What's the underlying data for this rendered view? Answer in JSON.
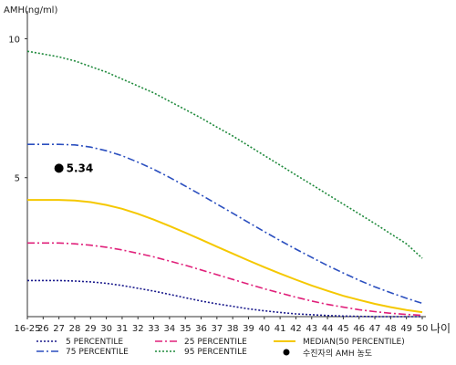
{
  "chart_data": {
    "type": "line",
    "ylabel": "AMH(ng/ml)",
    "xlabel": "나이",
    "ylim": [
      0,
      11
    ],
    "y_ticks": [
      5,
      10
    ],
    "categories": [
      "16-25",
      "26",
      "27",
      "28",
      "29",
      "30",
      "31",
      "32",
      "33",
      "34",
      "35",
      "36",
      "37",
      "38",
      "39",
      "40",
      "41",
      "42",
      "43",
      "44",
      "45",
      "46",
      "47",
      "48",
      "49",
      "50"
    ],
    "series": [
      {
        "name": "5 PERCENTILE",
        "color": "#1a1a8c",
        "dash": "2,2",
        "values": [
          1.3,
          1.3,
          1.3,
          1.28,
          1.25,
          1.2,
          1.12,
          1.02,
          0.92,
          0.8,
          0.68,
          0.56,
          0.46,
          0.37,
          0.28,
          0.21,
          0.15,
          0.1,
          0.07,
          0.04,
          0.02,
          0.01,
          0.0,
          0.0,
          0.0,
          0.0
        ]
      },
      {
        "name": "25 PERCENTILE",
        "color": "#e0207a",
        "dash": "8,3,2,3",
        "values": [
          2.65,
          2.65,
          2.65,
          2.62,
          2.57,
          2.5,
          2.4,
          2.28,
          2.15,
          2.0,
          1.85,
          1.68,
          1.51,
          1.34,
          1.17,
          1.0,
          0.85,
          0.7,
          0.56,
          0.44,
          0.34,
          0.25,
          0.18,
          0.12,
          0.08,
          0.05
        ]
      },
      {
        "name": "MEDIAN(50 PERCENTILE)",
        "color": "#f5c800",
        "dash": "",
        "values": [
          4.2,
          4.2,
          4.2,
          4.18,
          4.12,
          4.02,
          3.88,
          3.7,
          3.49,
          3.26,
          3.02,
          2.77,
          2.52,
          2.27,
          2.02,
          1.78,
          1.55,
          1.33,
          1.12,
          0.93,
          0.75,
          0.6,
          0.46,
          0.34,
          0.24,
          0.16
        ]
      },
      {
        "name": "75 PERCENTILE",
        "color": "#2b4fbf",
        "dash": "8,3,2,3",
        "values": [
          6.2,
          6.2,
          6.2,
          6.18,
          6.1,
          5.97,
          5.79,
          5.56,
          5.3,
          5.01,
          4.7,
          4.38,
          4.05,
          3.72,
          3.39,
          3.06,
          2.74,
          2.43,
          2.13,
          1.84,
          1.57,
          1.31,
          1.07,
          0.86,
          0.66,
          0.48
        ]
      },
      {
        "name": "95 PERCENTILE",
        "color": "#1f8a3c",
        "dash": "2,2",
        "values": [
          9.55,
          9.45,
          9.35,
          9.2,
          9.0,
          8.8,
          8.55,
          8.3,
          8.05,
          7.75,
          7.45,
          7.15,
          6.82,
          6.5,
          6.15,
          5.8,
          5.45,
          5.1,
          4.75,
          4.4,
          4.05,
          3.7,
          3.35,
          2.98,
          2.62,
          2.1
        ]
      }
    ],
    "patient_point": {
      "name": "수진자의 AMH 농도",
      "x_index": 2,
      "y": 5.34,
      "label": "5.34",
      "color": "#000000"
    },
    "legend_position": "bottom"
  }
}
